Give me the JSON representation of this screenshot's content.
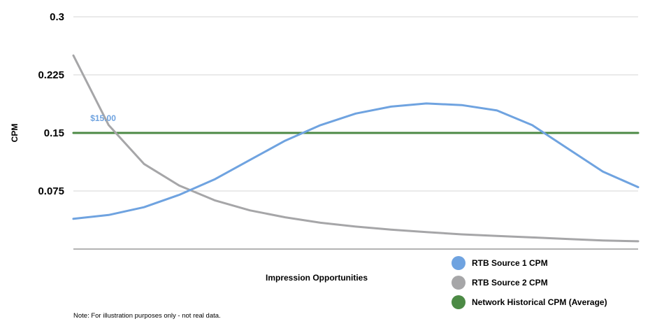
{
  "chart_data": {
    "type": "line",
    "xlabel": "Impression Opportunities",
    "ylabel": "CPM",
    "ylim": [
      0,
      0.3
    ],
    "yticks": [
      "0.3",
      "0.225",
      "0.15",
      "0.075"
    ],
    "grid": true,
    "legend_position": "bottom-right",
    "annotation": {
      "text": "$15.00",
      "series": "RTB Source 1 CPM",
      "x": 0.4,
      "y": 0.15
    },
    "x": [
      0,
      1,
      2,
      3,
      4,
      5,
      6,
      7,
      8,
      9,
      10,
      11,
      12,
      13,
      14,
      15,
      16
    ],
    "series": [
      {
        "name": "RTB Source 1 CPM",
        "color": "#6fa3e0",
        "values": [
          0.039,
          0.044,
          0.054,
          0.07,
          0.09,
          0.115,
          0.14,
          0.16,
          0.175,
          0.184,
          0.188,
          0.186,
          0.179,
          0.16,
          0.13,
          0.1,
          0.08
        ]
      },
      {
        "name": "RTB Source 2 CPM",
        "color": "#a6a6a8",
        "values": [
          0.25,
          0.16,
          0.11,
          0.082,
          0.063,
          0.05,
          0.041,
          0.034,
          0.029,
          0.025,
          0.022,
          0.019,
          0.017,
          0.015,
          0.013,
          0.011,
          0.01
        ]
      },
      {
        "name": "Network Historical CPM (Average)",
        "color": "#4c8a45",
        "values": [
          0.15,
          0.15,
          0.15,
          0.15,
          0.15,
          0.15,
          0.15,
          0.15,
          0.15,
          0.15,
          0.15,
          0.15,
          0.15,
          0.15,
          0.15,
          0.15,
          0.15
        ]
      }
    ]
  },
  "note": "Note: For illustration purposes only - not real data."
}
